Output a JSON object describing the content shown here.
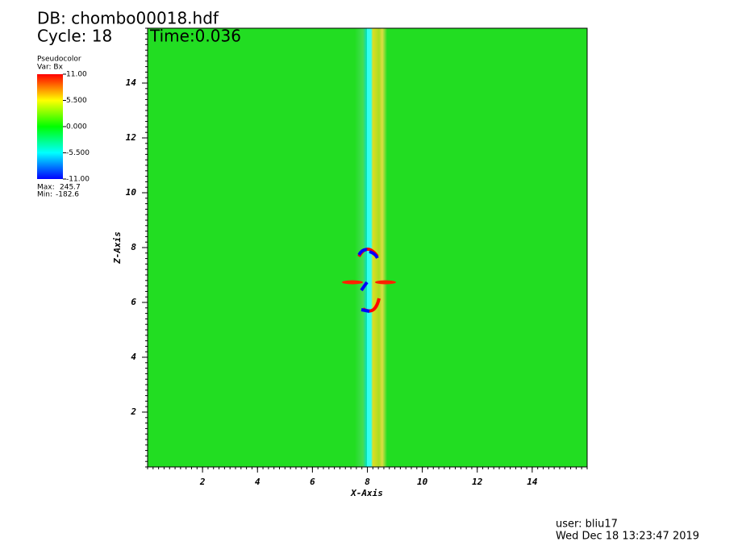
{
  "chart_data": {
    "type": "heatmap",
    "title": "DB: chombo00018.hdf",
    "subtitle": "Cycle: 18",
    "time": "Time:0.036",
    "xlabel": "X-Axis",
    "ylabel": "Z-Axis",
    "xlim": [
      0,
      16
    ],
    "ylim": [
      0,
      16
    ],
    "xticks": [
      2,
      4,
      6,
      8,
      10,
      12,
      14
    ],
    "yticks": [
      2,
      4,
      6,
      8,
      10,
      12,
      14
    ],
    "colorbar": {
      "title": "Pseudocolor",
      "variable": "Var: Bx",
      "lim": [
        -11,
        11
      ],
      "ticks": [
        {
          "value": 11,
          "label": "11.00"
        },
        {
          "value": 5.5,
          "label": "5.500"
        },
        {
          "value": 0,
          "label": "0.000"
        },
        {
          "value": -5.5,
          "label": "-5.500"
        },
        {
          "value": -11,
          "label": "-11.00"
        }
      ],
      "colors": [
        "#0000ff",
        "#00ffff",
        "#00ff00",
        "#ffff00",
        "#ff0000"
      ],
      "max_label": "Max:",
      "max": 245.7,
      "min_label": "Min:",
      "min": -182.6
    },
    "user": "user: bliu17",
    "date": "Wed Dec 18 13:23:47 2019"
  }
}
